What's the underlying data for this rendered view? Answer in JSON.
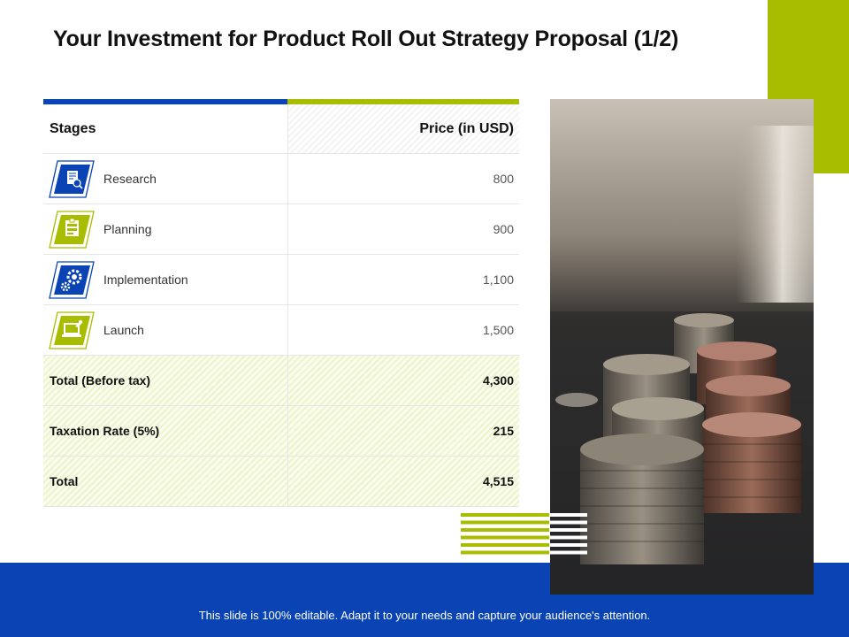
{
  "slide": {
    "title": "Your Investment for Product Roll Out Strategy Proposal (1/2)",
    "footer": "This slide is 100% editable. Adapt it to your needs and capture your audience's attention."
  },
  "table": {
    "header": {
      "stage": "Stages",
      "price": "Price (in USD)"
    },
    "rows": [
      {
        "label": "Research",
        "value": "800",
        "icon": "research-doc-icon",
        "accent": "#0a44b4"
      },
      {
        "label": "Planning",
        "value": "900",
        "icon": "planning-board-icon",
        "accent": "#a8bd00"
      },
      {
        "label": "Implementation",
        "value": "1,100",
        "icon": "gears-icon",
        "accent": "#0a44b4"
      },
      {
        "label": "Launch",
        "value": "1,500",
        "icon": "laptop-launch-icon",
        "accent": "#a8bd00"
      }
    ],
    "summary": [
      {
        "label": "Total (Before tax)",
        "value": "4,300"
      },
      {
        "label": "Taxation Rate (5%)",
        "value": "215"
      },
      {
        "label": "Total",
        "value": "4,515"
      }
    ]
  },
  "colors": {
    "brand_blue": "#0a44b4",
    "brand_green": "#a8bd00"
  },
  "image": {
    "subject": "coins-photo"
  }
}
